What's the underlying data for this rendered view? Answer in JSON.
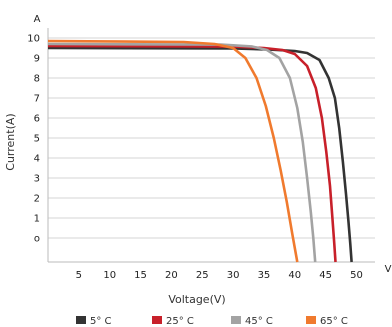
{
  "chart_data": {
    "type": "line",
    "xlabel": "Voltage(V)",
    "ylabel": "Current(A)",
    "y_unit": "A",
    "x_unit": "V",
    "xlim": [
      0,
      53
    ],
    "ylim": [
      -1.2,
      10.5
    ],
    "x_ticks": [
      "5",
      "10",
      "15",
      "20",
      "25",
      "30",
      "35",
      "40",
      "45",
      "50"
    ],
    "y_ticks": [
      "o",
      "1",
      "2",
      "3",
      "4",
      "5",
      "6",
      "7",
      "8",
      "9",
      "10"
    ],
    "grid": "horizontal",
    "legend_position": "bottom",
    "series": [
      {
        "name": "5° C",
        "color": "#333333",
        "points": [
          [
            0,
            9.5
          ],
          [
            30,
            9.48
          ],
          [
            36,
            9.42
          ],
          [
            40,
            9.35
          ],
          [
            42,
            9.25
          ],
          [
            44,
            8.9
          ],
          [
            45.5,
            8.0
          ],
          [
            46.5,
            7.0
          ],
          [
            47.2,
            5.5
          ],
          [
            47.8,
            3.8
          ],
          [
            48.3,
            2.2
          ],
          [
            48.7,
            0.8
          ],
          [
            49,
            -0.3
          ],
          [
            49.2,
            -1.2
          ]
        ]
      },
      {
        "name": "25° C",
        "color": "#c8202a",
        "points": [
          [
            0,
            9.6
          ],
          [
            30,
            9.57
          ],
          [
            35,
            9.5
          ],
          [
            38,
            9.4
          ],
          [
            40,
            9.2
          ],
          [
            42,
            8.6
          ],
          [
            43.4,
            7.5
          ],
          [
            44.4,
            6.0
          ],
          [
            45.1,
            4.3
          ],
          [
            45.7,
            2.6
          ],
          [
            46.1,
            1.0
          ],
          [
            46.4,
            -0.3
          ],
          [
            46.6,
            -1.2
          ]
        ]
      },
      {
        "name": "45° C",
        "color": "#a3a3a3",
        "points": [
          [
            0,
            9.7
          ],
          [
            28,
            9.67
          ],
          [
            33,
            9.58
          ],
          [
            35.5,
            9.4
          ],
          [
            37.5,
            9.0
          ],
          [
            39.2,
            8.0
          ],
          [
            40.4,
            6.5
          ],
          [
            41.3,
            4.8
          ],
          [
            42,
            3.0
          ],
          [
            42.6,
            1.3
          ],
          [
            43,
            0.0
          ],
          [
            43.3,
            -1.2
          ]
        ]
      },
      {
        "name": "65° C",
        "color": "#f07a2e",
        "points": [
          [
            0,
            9.85
          ],
          [
            22,
            9.8
          ],
          [
            27,
            9.7
          ],
          [
            30,
            9.5
          ],
          [
            32,
            9.0
          ],
          [
            33.8,
            8.0
          ],
          [
            35.3,
            6.6
          ],
          [
            36.6,
            5.0
          ],
          [
            37.7,
            3.4
          ],
          [
            38.7,
            1.8
          ],
          [
            39.6,
            0.2
          ],
          [
            40,
            -0.5
          ],
          [
            40.4,
            -1.2
          ]
        ]
      }
    ]
  }
}
